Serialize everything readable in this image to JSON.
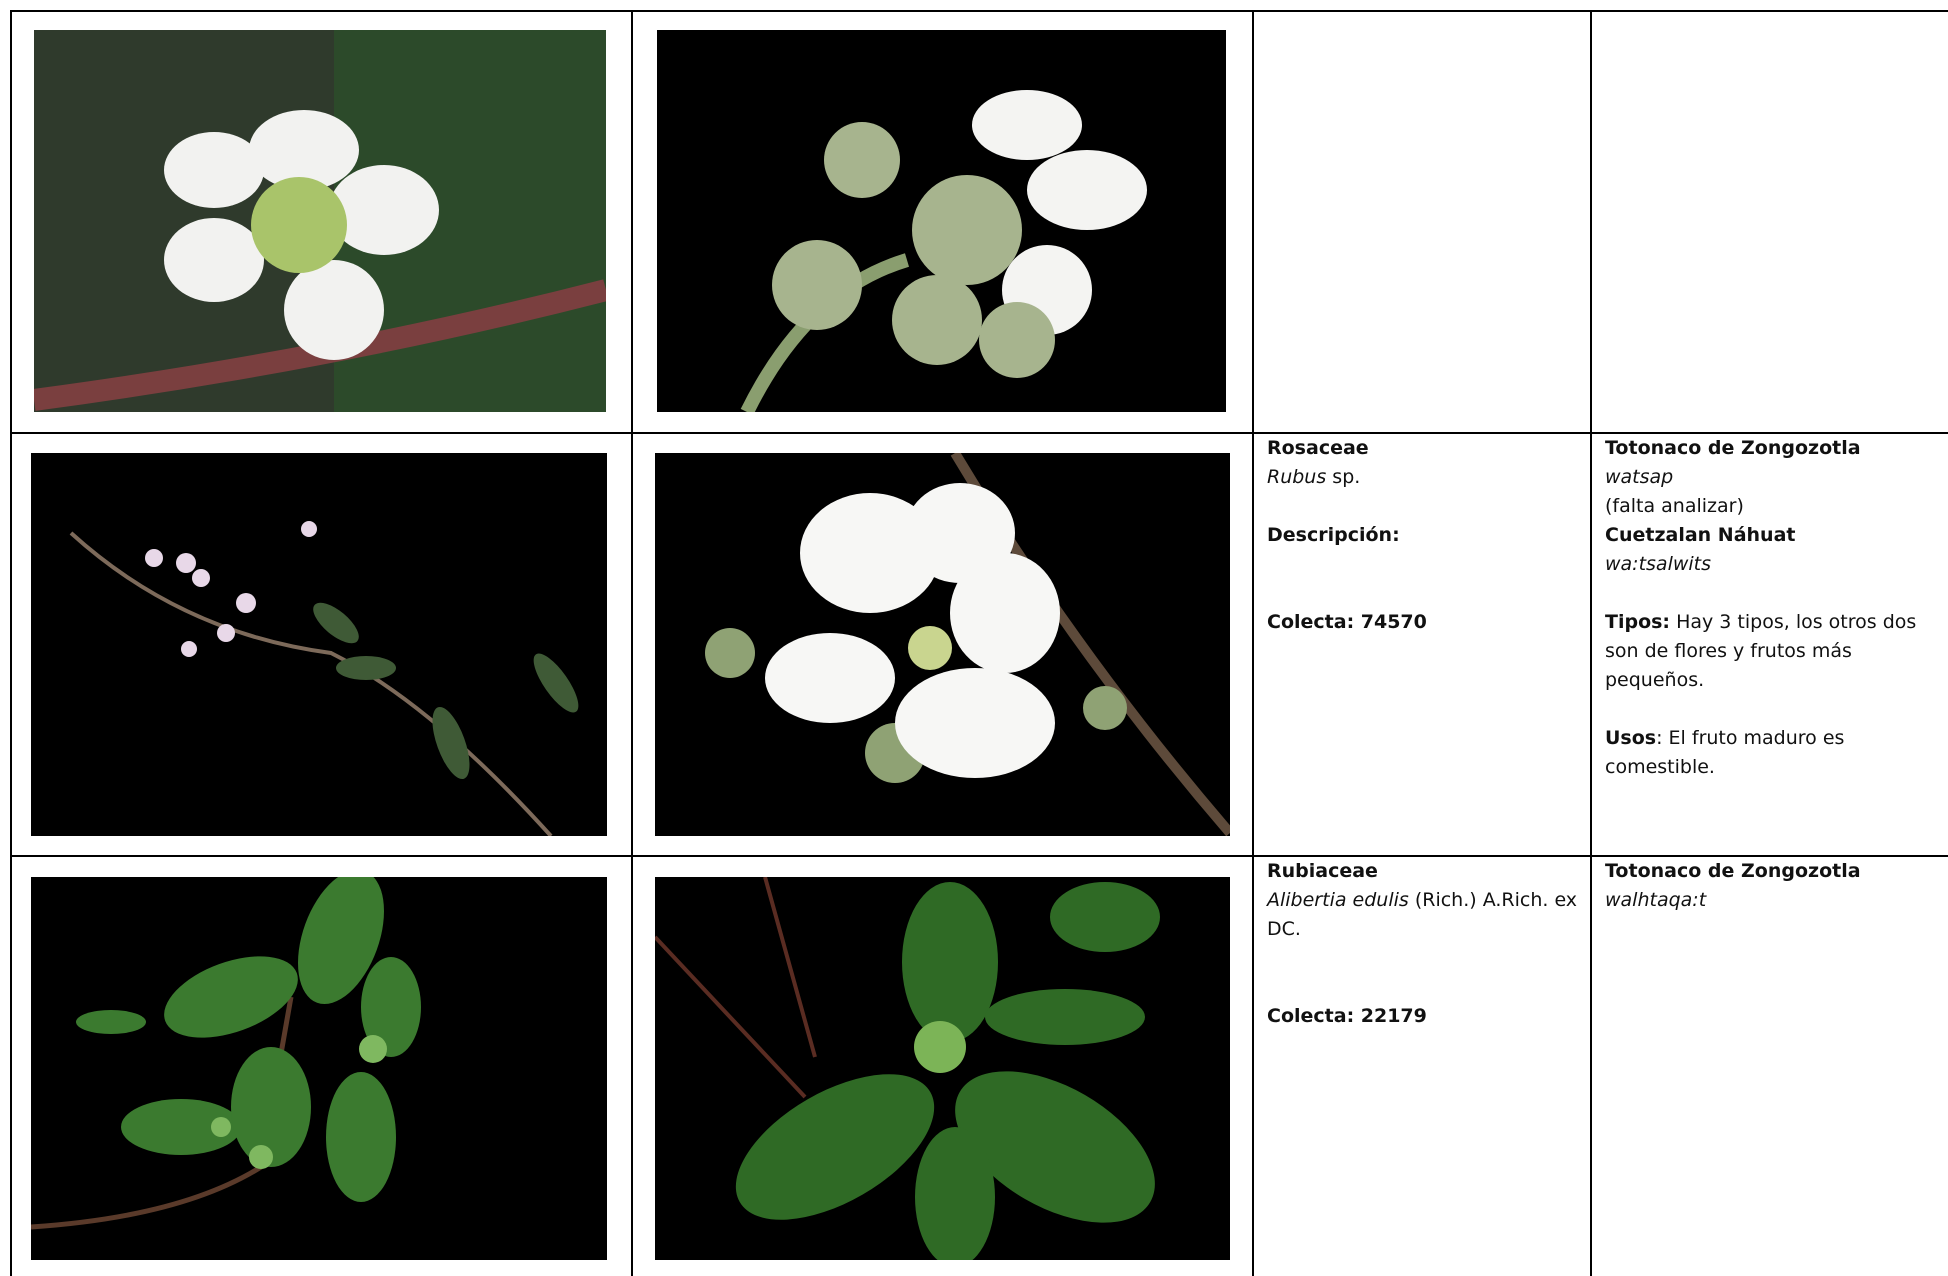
{
  "table": {
    "rows": [
      {},
      {
        "family": "Rosaceae",
        "genus": "Rubus",
        "authority": "sp.",
        "description_label": "Descripción:",
        "collection": "Colecta: 74570",
        "lang1": "Totonaco de Zongozotla",
        "name1": "watsap",
        "note1": "(falta analizar)",
        "lang2": "Cuetzalan Náhuat",
        "name2": "wa:tsalwits",
        "types_label": "Tipos:",
        "types_text": "Hay 3 tipos, los otros dos son de flores y frutos más pequeños.",
        "uses_label": "Usos",
        "uses_text": ": El fruto maduro es comestible."
      },
      {
        "family": "Rubiaceae",
        "genus": "Alibertia edulis",
        "authority": "(Rich.) A.Rich. ex DC.",
        "collection": "Colecta: 22179",
        "lang1": "Totonaco de Zongozotla",
        "name1": "walhtaqa:t"
      }
    ]
  }
}
